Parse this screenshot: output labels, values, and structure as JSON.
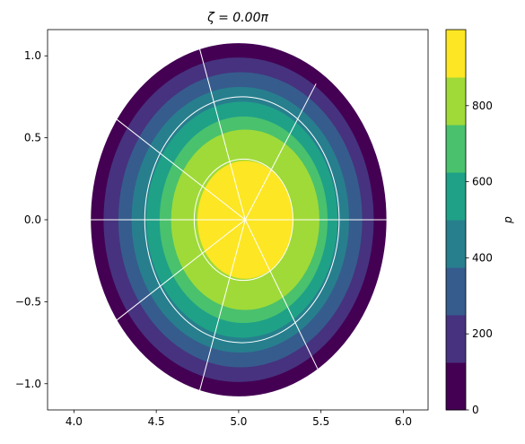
{
  "chart_data": {
    "type": "contourf",
    "title": "ζ = 0.00π",
    "colorbar_label": "p",
    "xlim": [
      3.84,
      6.15
    ],
    "ylim": [
      -1.16,
      1.16
    ],
    "xticks": [
      {
        "value": 4,
        "label": "4.0"
      },
      {
        "value": 4.5,
        "label": "4.5"
      },
      {
        "value": 5,
        "label": "5.0"
      },
      {
        "value": 5.5,
        "label": "5.5"
      },
      {
        "value": 6,
        "label": "6.0"
      }
    ],
    "yticks": [
      {
        "value": -1,
        "label": "−1.0"
      },
      {
        "value": -0.5,
        "label": "−0.5"
      },
      {
        "value": 0,
        "label": "0.0"
      },
      {
        "value": 0.5,
        "label": "0.5"
      },
      {
        "value": 1,
        "label": "1.0"
      }
    ],
    "zlim": [
      0,
      1000
    ],
    "zticks": [
      0,
      200,
      400,
      600,
      800
    ],
    "bands": [
      {
        "level": 0,
        "color": "#440154",
        "cx": 5.0,
        "rx": 0.9,
        "ry": 1.08
      },
      {
        "level": 125,
        "color": "#46327e",
        "cx": 5.0,
        "rx": 0.82,
        "ry": 0.99
      },
      {
        "level": 250,
        "color": "#365c8d",
        "cx": 5.01,
        "rx": 0.74,
        "ry": 0.9
      },
      {
        "level": 375,
        "color": "#277f8e",
        "cx": 5.01,
        "rx": 0.66,
        "ry": 0.81
      },
      {
        "level": 500,
        "color": "#1fa187",
        "cx": 5.02,
        "rx": 0.58,
        "ry": 0.72
      },
      {
        "level": 625,
        "color": "#4ac16d",
        "cx": 5.03,
        "rx": 0.51,
        "ry": 0.63
      },
      {
        "level": 750,
        "color": "#a0da39",
        "cx": 5.04,
        "rx": 0.45,
        "ry": 0.55
      },
      {
        "level": 875,
        "color": "#fde725",
        "cx": 5.04,
        "rx": 0.29,
        "ry": 0.36
      }
    ],
    "overlay": {
      "color": "#ffffff",
      "origin": [
        5.04,
        0
      ],
      "surfaces": [
        {
          "cx": 5.03,
          "rx": 0.3,
          "ry": 0.37
        },
        {
          "cx": 5.02,
          "rx": 0.59,
          "ry": 0.75
        }
      ],
      "spokes": [
        [
          5.9,
          0
        ],
        [
          5.47,
          0.83
        ],
        [
          4.76,
          1.055
        ],
        [
          4.25,
          0.62
        ],
        [
          4.1,
          0
        ],
        [
          4.25,
          -0.62
        ],
        [
          4.76,
          -1.055
        ],
        [
          5.48,
          -0.91
        ]
      ]
    }
  }
}
